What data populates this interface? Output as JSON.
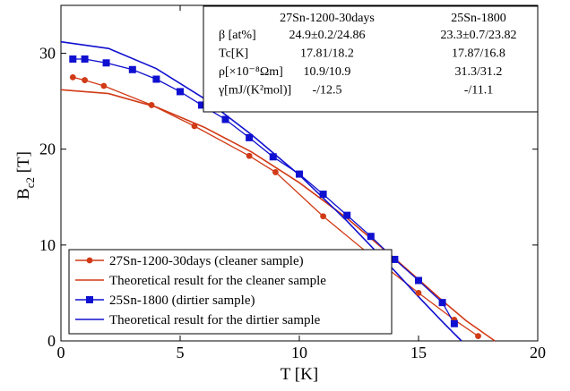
{
  "chart_data": {
    "type": "line",
    "xlabel": "T [K]",
    "ylabel": "B",
    "ylabel_sub": "c2",
    "ylabel_unit": " [T]",
    "xlim": [
      0,
      20
    ],
    "ylim": [
      0,
      35
    ],
    "xticks": [
      0,
      5,
      10,
      15,
      20
    ],
    "yticks": [
      0,
      10,
      20,
      30
    ],
    "grid": false,
    "legend_position": "bottom-left",
    "series": [
      {
        "name": "27Sn-1200-30days (cleaner sample)",
        "kind": "markers-line",
        "marker": "circle",
        "color": "#d13a16",
        "x": [
          0.5,
          1.0,
          1.8,
          3.8,
          5.6,
          7.9,
          9.0,
          11.0,
          13.0,
          15.0,
          16.5,
          17.5
        ],
        "y": [
          27.5,
          27.2,
          26.6,
          24.6,
          22.4,
          19.3,
          17.6,
          13.0,
          8.9,
          5.0,
          2.2,
          0.5
        ]
      },
      {
        "name": "Theoretical result for the cleaner sample",
        "kind": "line",
        "color": "#d13a16",
        "x": [
          0,
          2,
          4,
          6,
          8,
          10,
          12,
          14,
          16,
          17,
          18.2
        ],
        "y": [
          26.2,
          25.8,
          24.4,
          22.3,
          19.7,
          16.5,
          12.8,
          8.6,
          4.2,
          2.1,
          0
        ]
      },
      {
        "name": "25Sn-1800 (dirtier sample)",
        "kind": "markers-line",
        "marker": "square",
        "color": "#1010d0",
        "x": [
          0.5,
          1.0,
          1.9,
          3.0,
          4.0,
          5.0,
          5.9,
          6.9,
          7.9,
          8.9,
          10.0,
          11.0,
          12.0,
          13.0,
          14.0,
          15.0,
          16.0,
          16.5
        ],
        "y": [
          29.4,
          29.4,
          29.0,
          28.3,
          27.3,
          26.0,
          24.6,
          23.1,
          21.2,
          19.2,
          17.4,
          15.3,
          13.1,
          10.9,
          8.5,
          6.3,
          4.0,
          1.8
        ]
      },
      {
        "name": "Theoretical result for the dirtier sample",
        "kind": "line",
        "color": "#1010d0",
        "x": [
          0,
          2,
          4,
          6,
          8,
          10,
          12,
          14,
          15,
          16,
          16.8
        ],
        "y": [
          31.2,
          30.5,
          28.4,
          25.3,
          21.5,
          17.3,
          12.5,
          7.3,
          4.6,
          2.0,
          0
        ]
      }
    ],
    "table": {
      "columns": [
        "",
        "27Sn-1200-30days",
        "25Sn-1800"
      ],
      "rows": [
        [
          "β [at%]",
          "24.9±0.2/24.86",
          "23.3±0.7/23.82"
        ],
        [
          "Tc[K]",
          "17.81/18.2",
          "17.87/16.8"
        ],
        [
          "ρ[×10⁻⁸Ωm]",
          "10.9/10.9",
          "31.3/31.2"
        ],
        [
          "γ[mJ/(K²mol)]",
          "-/12.5",
          "-/11.1"
        ]
      ]
    }
  }
}
